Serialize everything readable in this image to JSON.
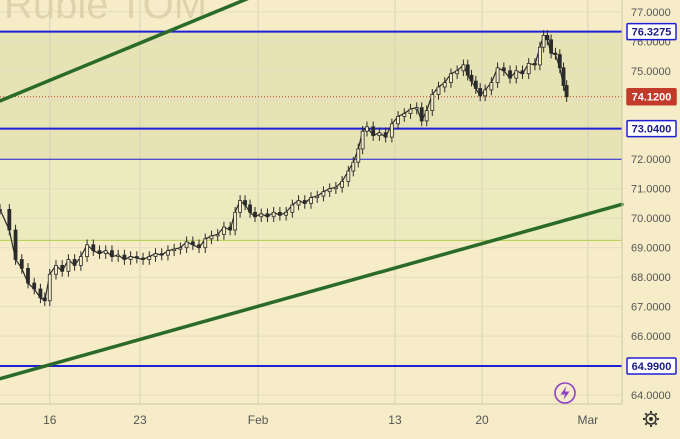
{
  "chart_data": {
    "type": "candlestick",
    "watermark": "Ruble TOM",
    "x_ticks": [
      "16",
      "23",
      "Feb",
      "13",
      "20",
      "Mar"
    ],
    "y_ticks": [
      "77.0000",
      "76.0000",
      "75.0000",
      "74.0000",
      "73.0000",
      "72.0000",
      "71.0000",
      "70.0000",
      "69.0000",
      "68.0000",
      "67.0000",
      "66.0000",
      "65.0000",
      "64.0000"
    ],
    "ylim": [
      63.7,
      77.4
    ],
    "x_domain": [
      0,
      100
    ],
    "horizontal_levels": [
      {
        "value": 76.3275,
        "label": "76.3275",
        "color": "#1f1fd6",
        "width": 2,
        "badge": "outline"
      },
      {
        "value": 74.12,
        "label": "74.1200",
        "color": "#c23a2a",
        "width": 1,
        "dashed": true,
        "badge": "filled"
      },
      {
        "value": 73.04,
        "label": "73.0400",
        "color": "#1f1fd6",
        "width": 2,
        "badge": "outline"
      },
      {
        "value": 72.0,
        "label": "",
        "color": "#1f1fd6",
        "width": 1
      },
      {
        "value": 69.25,
        "label": "",
        "color": "#b2cc4a",
        "width": 1
      },
      {
        "value": 64.99,
        "label": "64.9900",
        "color": "#1f1fd6",
        "width": 2,
        "badge": "outline"
      }
    ],
    "zones": [
      {
        "from": 76.3275,
        "to": 72.0,
        "color": "#e6e3b4"
      },
      {
        "from": 72.0,
        "to": 69.25,
        "color": "#ecebc0"
      }
    ],
    "trendlines": [
      {
        "x1": 0,
        "y1": 73.98,
        "x2": 41,
        "y2": 77.55,
        "color": "#2a6b2a"
      },
      {
        "x1": 0,
        "y1": 64.56,
        "x2": 100,
        "y2": 70.47,
        "color": "#2a6b2a"
      }
    ],
    "series": [
      {
        "x": 0,
        "y": 70.3
      },
      {
        "x": 1.5,
        "y": 69.6
      },
      {
        "x": 2.5,
        "y": 68.6
      },
      {
        "x": 3.5,
        "y": 68.3
      },
      {
        "x": 4.5,
        "y": 67.8
      },
      {
        "x": 5.5,
        "y": 67.6
      },
      {
        "x": 6.5,
        "y": 67.3
      },
      {
        "x": 7.2,
        "y": 67.2
      },
      {
        "x": 8,
        "y": 68.1
      },
      {
        "x": 9,
        "y": 68.4
      },
      {
        "x": 10,
        "y": 68.2
      },
      {
        "x": 11,
        "y": 68.6
      },
      {
        "x": 12,
        "y": 68.4
      },
      {
        "x": 13,
        "y": 68.7
      },
      {
        "x": 14,
        "y": 69.1
      },
      {
        "x": 15,
        "y": 68.9
      },
      {
        "x": 16,
        "y": 68.8
      },
      {
        "x": 17,
        "y": 68.9
      },
      {
        "x": 18,
        "y": 68.7
      },
      {
        "x": 19,
        "y": 68.75
      },
      {
        "x": 20,
        "y": 68.6
      },
      {
        "x": 21,
        "y": 68.7
      },
      {
        "x": 22,
        "y": 68.65
      },
      {
        "x": 23,
        "y": 68.6
      },
      {
        "x": 24,
        "y": 68.7
      },
      {
        "x": 25,
        "y": 68.8
      },
      {
        "x": 26,
        "y": 68.75
      },
      {
        "x": 27,
        "y": 68.9
      },
      {
        "x": 28,
        "y": 68.95
      },
      {
        "x": 29,
        "y": 69.0
      },
      {
        "x": 30,
        "y": 69.2
      },
      {
        "x": 31,
        "y": 69.1
      },
      {
        "x": 32,
        "y": 69.0
      },
      {
        "x": 33,
        "y": 69.3
      },
      {
        "x": 34,
        "y": 69.4
      },
      {
        "x": 35,
        "y": 69.45
      },
      {
        "x": 36,
        "y": 69.7
      },
      {
        "x": 37,
        "y": 69.6
      },
      {
        "x": 37.8,
        "y": 70.2
      },
      {
        "x": 38.6,
        "y": 70.6
      },
      {
        "x": 39.4,
        "y": 70.45
      },
      {
        "x": 40.2,
        "y": 70.2
      },
      {
        "x": 41,
        "y": 70.05
      },
      {
        "x": 42,
        "y": 70.15
      },
      {
        "x": 43,
        "y": 70.05
      },
      {
        "x": 44,
        "y": 70.2
      },
      {
        "x": 45,
        "y": 70.1
      },
      {
        "x": 46,
        "y": 70.2
      },
      {
        "x": 47,
        "y": 70.45
      },
      {
        "x": 48,
        "y": 70.6
      },
      {
        "x": 49,
        "y": 70.5
      },
      {
        "x": 50,
        "y": 70.7
      },
      {
        "x": 51,
        "y": 70.75
      },
      {
        "x": 52,
        "y": 70.9
      },
      {
        "x": 53,
        "y": 71.0
      },
      {
        "x": 54,
        "y": 71.05
      },
      {
        "x": 55,
        "y": 71.25
      },
      {
        "x": 56,
        "y": 71.6
      },
      {
        "x": 56.8,
        "y": 71.9
      },
      {
        "x": 57.6,
        "y": 72.35
      },
      {
        "x": 58.3,
        "y": 72.95
      },
      {
        "x": 59,
        "y": 73.1
      },
      {
        "x": 60,
        "y": 72.8
      },
      {
        "x": 61,
        "y": 72.9
      },
      {
        "x": 62,
        "y": 72.75
      },
      {
        "x": 63,
        "y": 73.2
      },
      {
        "x": 64,
        "y": 73.45
      },
      {
        "x": 65,
        "y": 73.55
      },
      {
        "x": 66,
        "y": 73.7
      },
      {
        "x": 67,
        "y": 73.75
      },
      {
        "x": 67.8,
        "y": 73.3
      },
      {
        "x": 68.6,
        "y": 73.65
      },
      {
        "x": 69.5,
        "y": 74.2
      },
      {
        "x": 70.5,
        "y": 74.45
      },
      {
        "x": 71.5,
        "y": 74.6
      },
      {
        "x": 72.5,
        "y": 74.9
      },
      {
        "x": 73.5,
        "y": 75.0
      },
      {
        "x": 74.5,
        "y": 75.2
      },
      {
        "x": 75.2,
        "y": 74.85
      },
      {
        "x": 75.8,
        "y": 74.65
      },
      {
        "x": 76.5,
        "y": 74.4
      },
      {
        "x": 77.2,
        "y": 74.15
      },
      {
        "x": 78,
        "y": 74.35
      },
      {
        "x": 79,
        "y": 74.6
      },
      {
        "x": 80,
        "y": 75.1
      },
      {
        "x": 81,
        "y": 75.0
      },
      {
        "x": 82,
        "y": 74.75
      },
      {
        "x": 83,
        "y": 75.0
      },
      {
        "x": 84,
        "y": 74.9
      },
      {
        "x": 85,
        "y": 75.25
      },
      {
        "x": 86,
        "y": 75.2
      },
      {
        "x": 86.8,
        "y": 75.8
      },
      {
        "x": 87.4,
        "y": 76.2
      },
      {
        "x": 88,
        "y": 76.05
      },
      {
        "x": 88.6,
        "y": 75.6
      },
      {
        "x": 89.3,
        "y": 75.55
      },
      {
        "x": 90,
        "y": 75.1
      },
      {
        "x": 90.6,
        "y": 74.5
      },
      {
        "x": 91.1,
        "y": 74.12
      }
    ],
    "x_tick_positions": [
      8,
      22.5,
      41.5,
      63.5,
      77.5,
      94.5
    ],
    "colors": {
      "background": "#f6ecc8",
      "candles": "#2b2b2b",
      "axis_text": "#555555"
    }
  },
  "toolbar": {
    "lightning_icon": "lightning-icon",
    "settings_icon": "gear-icon"
  }
}
